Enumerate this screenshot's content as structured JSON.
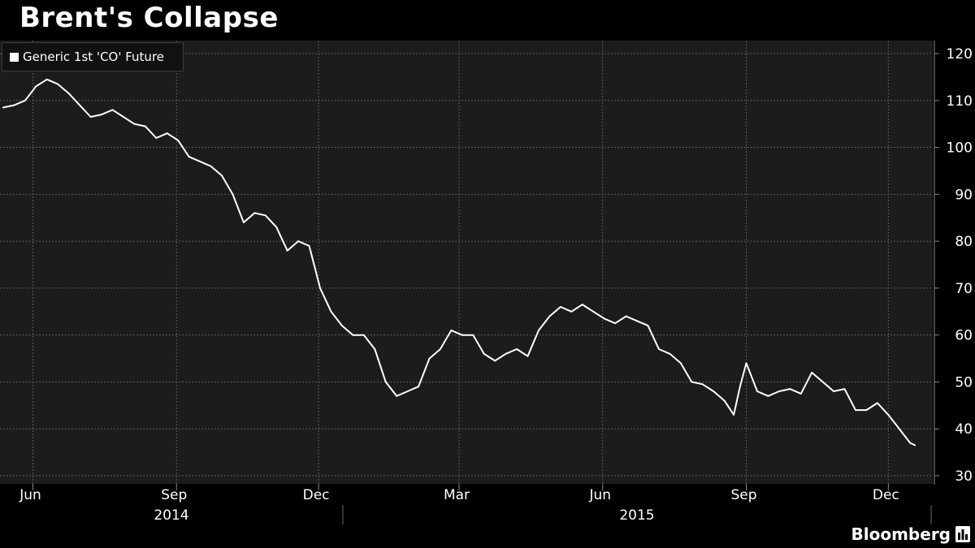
{
  "title": "Brent's Collapse",
  "brand": "Bloomberg",
  "brand_icon": "bloomberg-bars-icon",
  "colors": {
    "background": "#000000",
    "plot_background": "#1c1c1c",
    "grid": "#5a5a5a",
    "line": "#ffffff",
    "text": "#ffffff"
  },
  "chart_data": {
    "type": "line",
    "title": "Brent's Collapse",
    "xlabel": "",
    "ylabel": "",
    "ylim": [
      30,
      122
    ],
    "yticks": [
      30,
      40,
      50,
      60,
      70,
      80,
      90,
      100,
      110,
      120
    ],
    "y_axis_position": "right",
    "grid": true,
    "legend": "top-left",
    "x_month_ticks": [
      {
        "label": "Jun",
        "date": "2014-06-01"
      },
      {
        "label": "Sep",
        "date": "2014-09-01"
      },
      {
        "label": "Dec",
        "date": "2014-12-01"
      },
      {
        "label": "Mar",
        "date": "2015-03-01"
      },
      {
        "label": "Jun",
        "date": "2015-06-01"
      },
      {
        "label": "Sep",
        "date": "2015-09-01"
      },
      {
        "label": "Dec",
        "date": "2015-12-01"
      }
    ],
    "x_year_labels": [
      "2014",
      "2015"
    ],
    "series": [
      {
        "name": "Generic 1st 'CO' Future",
        "x": [
          "2014-05-13",
          "2014-05-20",
          "2014-05-27",
          "2014-06-03",
          "2014-06-10",
          "2014-06-17",
          "2014-06-24",
          "2014-07-01",
          "2014-07-08",
          "2014-07-15",
          "2014-07-22",
          "2014-07-29",
          "2014-08-05",
          "2014-08-12",
          "2014-08-19",
          "2014-08-26",
          "2014-09-02",
          "2014-09-09",
          "2014-09-16",
          "2014-09-23",
          "2014-09-30",
          "2014-10-07",
          "2014-10-14",
          "2014-10-21",
          "2014-10-28",
          "2014-11-04",
          "2014-11-11",
          "2014-11-18",
          "2014-11-25",
          "2014-12-02",
          "2014-12-09",
          "2014-12-16",
          "2014-12-23",
          "2014-12-30",
          "2015-01-06",
          "2015-01-13",
          "2015-01-20",
          "2015-01-27",
          "2015-02-03",
          "2015-02-10",
          "2015-02-17",
          "2015-02-24",
          "2015-03-03",
          "2015-03-10",
          "2015-03-17",
          "2015-03-24",
          "2015-03-31",
          "2015-04-07",
          "2015-04-14",
          "2015-04-21",
          "2015-04-28",
          "2015-05-05",
          "2015-05-12",
          "2015-05-19",
          "2015-05-26",
          "2015-06-02",
          "2015-06-09",
          "2015-06-16",
          "2015-06-23",
          "2015-06-30",
          "2015-07-07",
          "2015-07-14",
          "2015-07-21",
          "2015-07-28",
          "2015-08-04",
          "2015-08-11",
          "2015-08-18",
          "2015-08-24",
          "2015-08-28",
          "2015-09-01",
          "2015-09-08",
          "2015-09-15",
          "2015-09-22",
          "2015-09-29",
          "2015-10-06",
          "2015-10-13",
          "2015-10-20",
          "2015-10-27",
          "2015-11-03",
          "2015-11-10",
          "2015-11-17",
          "2015-11-24",
          "2015-12-01",
          "2015-12-08",
          "2015-12-15",
          "2015-12-18"
        ],
        "values": [
          108.5,
          109,
          110,
          113,
          114.5,
          113.5,
          111.5,
          109,
          106.5,
          107,
          108,
          106.5,
          105,
          104.5,
          102,
          103,
          101.5,
          98,
          97,
          96,
          94,
          90,
          84,
          86,
          85.5,
          83,
          78,
          80,
          79,
          70,
          65,
          62,
          60,
          60,
          57,
          50,
          47,
          48,
          49,
          55,
          57,
          61,
          60,
          60,
          56,
          54.5,
          56,
          57,
          55.5,
          61,
          64,
          66,
          65,
          66.5,
          65,
          63.5,
          62.5,
          64,
          63,
          62,
          57,
          56,
          54,
          50,
          49.5,
          48,
          46,
          43,
          49,
          54,
          48,
          47,
          48,
          48.5,
          47.5,
          52,
          50,
          48,
          48.5,
          44,
          44,
          45.5,
          43,
          40,
          37,
          36.5
        ]
      }
    ]
  }
}
